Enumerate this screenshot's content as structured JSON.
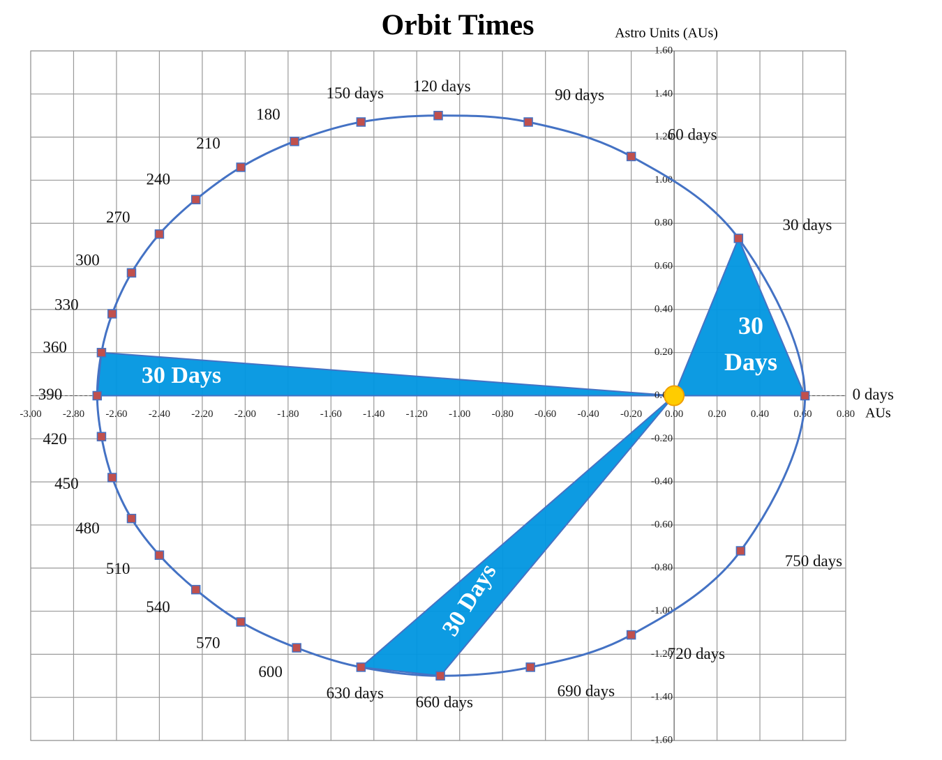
{
  "chart_data": {
    "type": "scatter",
    "title": "Orbit Times",
    "x_label": "AUs",
    "y_label": "Astro Units  (AUs)",
    "x": [
      0.61,
      0.3,
      -0.2,
      -0.68,
      -1.1,
      -1.46,
      -1.77,
      -2.02,
      -2.23,
      -2.4,
      -2.53,
      -2.62,
      -2.67,
      -2.69,
      -2.67,
      -2.62,
      -2.53,
      -2.4,
      -2.23,
      -2.02,
      -1.76,
      -1.46,
      -1.09,
      -0.67,
      -0.2,
      0.31
    ],
    "values": [
      0,
      0.73,
      1.11,
      1.27,
      1.3,
      1.27,
      1.18,
      1.06,
      0.91,
      0.75,
      0.57,
      0.38,
      0.2,
      0,
      -0.19,
      -0.38,
      -0.57,
      -0.74,
      -0.9,
      -1.05,
      -1.17,
      -1.26,
      -1.3,
      -1.26,
      -1.11,
      -0.72
    ],
    "labels": [
      "0 days",
      "30 days",
      "60 days",
      "90 days",
      "120 days",
      "150 days",
      "180",
      "210",
      "240",
      "270",
      "300",
      "330",
      "360",
      "390",
      "420",
      "450",
      "480",
      "510",
      "540",
      "570",
      "600",
      "630 days",
      "660 days",
      "690 days",
      "720 days",
      "750 days"
    ],
    "color": "#4472c4",
    "marker_color": "#c0504d",
    "wedge_color": "#0096e0",
    "annotations": [
      "30 Days",
      "30 Days",
      "30 Days"
    ],
    "xlim": [
      -3,
      0.8
    ],
    "ylim": [
      -1.6,
      1.6
    ],
    "xticks": [
      {
        "value": -3,
        "label": "-3.00"
      },
      {
        "value": -2.8,
        "label": "-2.80"
      },
      {
        "value": -2.6,
        "label": "-2.60"
      },
      {
        "value": -2.4,
        "label": "-2.40"
      },
      {
        "value": -2.2,
        "label": "-2.20"
      },
      {
        "value": -2,
        "label": "-2.00"
      },
      {
        "value": -1.8,
        "label": "-1.80"
      },
      {
        "value": -1.6,
        "label": "-1.60"
      },
      {
        "value": -1.4,
        "label": "-1.40"
      },
      {
        "value": -1.2,
        "label": "-1.20"
      },
      {
        "value": -1,
        "label": "-1.00"
      },
      {
        "value": -0.8,
        "label": "-0.80"
      },
      {
        "value": -0.6,
        "label": "-0.60"
      },
      {
        "value": -0.4,
        "label": "-0.40"
      },
      {
        "value": -0.2,
        "label": "-0.20"
      },
      {
        "value": 0,
        "label": "0.00"
      },
      {
        "value": 0.2,
        "label": "0.20"
      },
      {
        "value": 0.4,
        "label": "0.40"
      },
      {
        "value": 0.6,
        "label": "0.60"
      },
      {
        "value": 0.8,
        "label": "0.80"
      }
    ],
    "yticks": [
      {
        "value": -1.6,
        "label": "-1.60"
      },
      {
        "value": -1.4,
        "label": "-1.40"
      },
      {
        "value": -1.2,
        "label": "-1.20"
      },
      {
        "value": -1,
        "label": "-1.00"
      },
      {
        "value": -0.8,
        "label": "-0.80"
      },
      {
        "value": -0.6,
        "label": "-0.60"
      },
      {
        "value": -0.4,
        "label": "-0.40"
      },
      {
        "value": -0.2,
        "label": "-0.20"
      },
      {
        "value": 0,
        "label": "0.00"
      },
      {
        "value": 0.2,
        "label": "0.20"
      },
      {
        "value": 0.4,
        "label": "0.40"
      },
      {
        "value": 0.6,
        "label": "0.60"
      },
      {
        "value": 0.8,
        "label": "0.80"
      },
      {
        "value": 1,
        "label": "1.00"
      },
      {
        "value": 1.2,
        "label": "1.20"
      },
      {
        "value": 1.4,
        "label": "1.40"
      },
      {
        "value": 1.6,
        "label": "1.60"
      }
    ],
    "grid": true
  }
}
